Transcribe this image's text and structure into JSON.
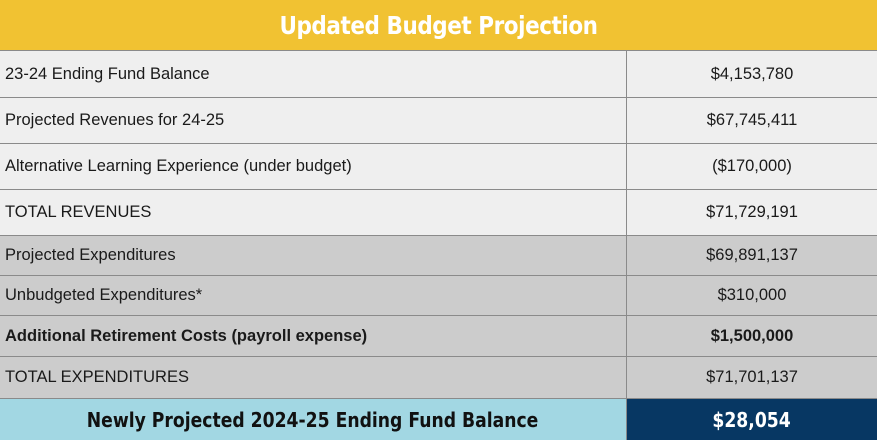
{
  "title": "Updated Budget Projection",
  "rows": [
    {
      "label": "23-24 Ending Fund Balance",
      "value": "$4,153,780"
    },
    {
      "label": "Projected Revenues for 24-25",
      "value": "$67,745,411"
    },
    {
      "label": "Alternative Learning Experience (under budget)",
      "value": "($170,000)"
    },
    {
      "label": "TOTAL REVENUES",
      "value": "$71,729,191"
    },
    {
      "label": "Projected Expenditures",
      "value": "$69,891,137"
    },
    {
      "label": "Unbudgeted Expenditures*",
      "value": "$310,000"
    },
    {
      "label": "Additional Retirement Costs (payroll expense)",
      "value": "$1,500,000"
    },
    {
      "label": "TOTAL EXPENDITURES",
      "value": "$71,701,137"
    }
  ],
  "footer": {
    "label": "Newly Projected 2024-25 Ending Fund Balance",
    "value": "$28,054"
  },
  "colors": {
    "header_bg": "#f1c232",
    "revenue_rows_bg": "#efefef",
    "expenditure_rows_bg": "#cccccc",
    "footer_label_bg": "#a2d7e3",
    "footer_value_bg": "#073763"
  }
}
